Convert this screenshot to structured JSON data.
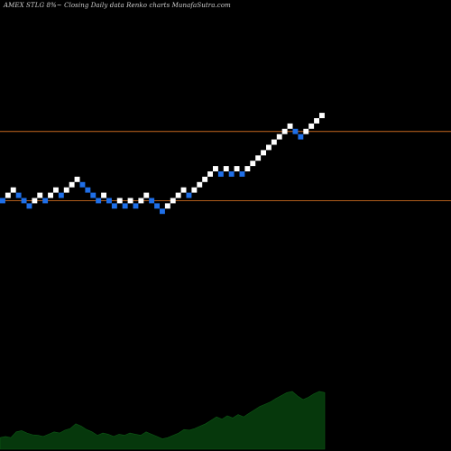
{
  "header": {
    "title": "AMEX  STLG 8%~  Closing Daily data  Renko  charts MunafaSutra.com"
  },
  "chart_data": {
    "type": "renko",
    "title": "AMEX  STLG 8%~  Closing Daily data  Renko  charts MunafaSutra.com",
    "bricks": [
      {
        "level": 0,
        "dir": "down"
      },
      {
        "level": 1,
        "dir": "up"
      },
      {
        "level": 2,
        "dir": "up"
      },
      {
        "level": 1,
        "dir": "down"
      },
      {
        "level": 0,
        "dir": "down"
      },
      {
        "level": -1,
        "dir": "down"
      },
      {
        "level": 0,
        "dir": "up"
      },
      {
        "level": 1,
        "dir": "up"
      },
      {
        "level": 0,
        "dir": "down"
      },
      {
        "level": 1,
        "dir": "up"
      },
      {
        "level": 2,
        "dir": "up"
      },
      {
        "level": 1,
        "dir": "down"
      },
      {
        "level": 2,
        "dir": "up"
      },
      {
        "level": 3,
        "dir": "up"
      },
      {
        "level": 4,
        "dir": "up"
      },
      {
        "level": 3,
        "dir": "down"
      },
      {
        "level": 2,
        "dir": "down"
      },
      {
        "level": 1,
        "dir": "down"
      },
      {
        "level": 0,
        "dir": "down"
      },
      {
        "level": 1,
        "dir": "up"
      },
      {
        "level": 0,
        "dir": "down"
      },
      {
        "level": -1,
        "dir": "down"
      },
      {
        "level": 0,
        "dir": "up"
      },
      {
        "level": -1,
        "dir": "down"
      },
      {
        "level": 0,
        "dir": "up"
      },
      {
        "level": -1,
        "dir": "down"
      },
      {
        "level": 0,
        "dir": "up"
      },
      {
        "level": 1,
        "dir": "up"
      },
      {
        "level": 0,
        "dir": "down"
      },
      {
        "level": -1,
        "dir": "down"
      },
      {
        "level": -2,
        "dir": "down"
      },
      {
        "level": -1,
        "dir": "up"
      },
      {
        "level": 0,
        "dir": "up"
      },
      {
        "level": 1,
        "dir": "up"
      },
      {
        "level": 2,
        "dir": "up"
      },
      {
        "level": 1,
        "dir": "down"
      },
      {
        "level": 2,
        "dir": "up"
      },
      {
        "level": 3,
        "dir": "up"
      },
      {
        "level": 4,
        "dir": "up"
      },
      {
        "level": 5,
        "dir": "up"
      },
      {
        "level": 6,
        "dir": "up"
      },
      {
        "level": 5,
        "dir": "down"
      },
      {
        "level": 6,
        "dir": "up"
      },
      {
        "level": 5,
        "dir": "down"
      },
      {
        "level": 6,
        "dir": "up"
      },
      {
        "level": 5,
        "dir": "down"
      },
      {
        "level": 6,
        "dir": "up"
      },
      {
        "level": 7,
        "dir": "up"
      },
      {
        "level": 8,
        "dir": "up"
      },
      {
        "level": 9,
        "dir": "up"
      },
      {
        "level": 10,
        "dir": "up"
      },
      {
        "level": 11,
        "dir": "up"
      },
      {
        "level": 12,
        "dir": "up"
      },
      {
        "level": 13,
        "dir": "up"
      },
      {
        "level": 14,
        "dir": "up"
      },
      {
        "level": 13,
        "dir": "down"
      },
      {
        "level": 12,
        "dir": "down"
      },
      {
        "level": 13,
        "dir": "up"
      },
      {
        "level": 14,
        "dir": "up"
      },
      {
        "level": 15,
        "dir": "up"
      },
      {
        "level": 16,
        "dir": "up"
      }
    ],
    "reference_lines": [
      13,
      0
    ],
    "volume": [
      0.2,
      0.22,
      0.2,
      0.3,
      0.32,
      0.28,
      0.25,
      0.24,
      0.22,
      0.26,
      0.3,
      0.28,
      0.33,
      0.36,
      0.44,
      0.4,
      0.34,
      0.3,
      0.24,
      0.28,
      0.26,
      0.22,
      0.26,
      0.24,
      0.28,
      0.26,
      0.24,
      0.3,
      0.26,
      0.22,
      0.18,
      0.2,
      0.24,
      0.28,
      0.34,
      0.33,
      0.36,
      0.4,
      0.44,
      0.5,
      0.56,
      0.52,
      0.58,
      0.54,
      0.6,
      0.56,
      0.62,
      0.68,
      0.74,
      0.78,
      0.82,
      0.88,
      0.93,
      0.98,
      1.0,
      0.92,
      0.86,
      0.9,
      0.96,
      1.0,
      0.98
    ],
    "colors": {
      "up_brick": "#ffffff",
      "down_brick": "#1f6fe8",
      "reference_line": "#c8691f",
      "volume_fill": "#06380c",
      "background": "#000000"
    },
    "grid": false
  }
}
